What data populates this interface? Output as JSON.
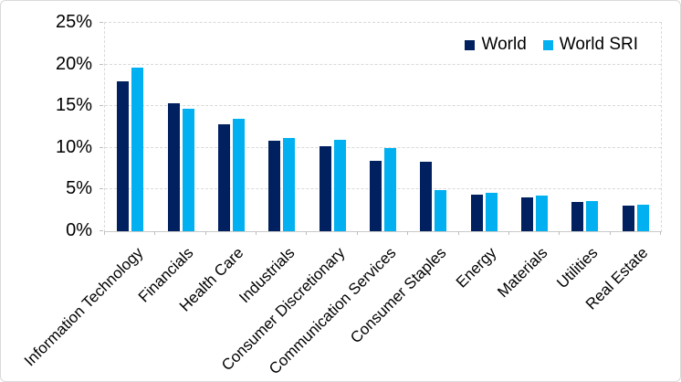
{
  "frame": {
    "background": "#ffffff",
    "border_color": "#d9d9d9"
  },
  "chart_data": {
    "type": "bar",
    "title": "",
    "xlabel": "",
    "ylabel": "",
    "categories": [
      "Information Technology",
      "Financials",
      "Health Care",
      "Industrials",
      "Consumer Discretionary",
      "Communication Services",
      "Consumer Staples",
      "Energy",
      "Materials",
      "Utilities",
      "Real Estate"
    ],
    "series": [
      {
        "name": "World",
        "color": "#002060",
        "values": [
          18.0,
          15.3,
          12.8,
          10.9,
          10.2,
          8.4,
          8.3,
          4.4,
          4.1,
          3.5,
          3.1
        ]
      },
      {
        "name": "World SRI",
        "color": "#00b0f0",
        "values": [
          19.6,
          14.7,
          13.5,
          11.2,
          11.0,
          10.0,
          4.9,
          4.6,
          4.3,
          3.6,
          3.2
        ]
      }
    ],
    "ylim": [
      0,
      25
    ],
    "y_tick_step": 5,
    "y_ticks": [
      "0%",
      "5%",
      "10%",
      "15%",
      "20%",
      "25%"
    ],
    "value_format": "percent",
    "grid": "horizontal-dashed",
    "gridline_color": "#d9d9d9",
    "x_label_rotation_deg": 45,
    "legend": {
      "position": "top-right",
      "entries": [
        "World",
        "World SRI"
      ]
    }
  }
}
